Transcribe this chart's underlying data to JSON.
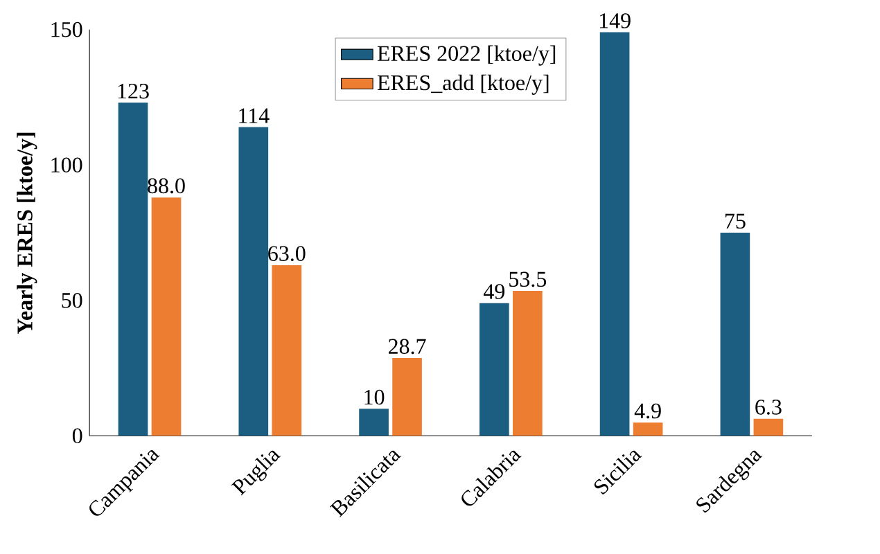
{
  "chart_data": {
    "type": "bar",
    "ylabel": "Yearly ERES [ktoe/y]",
    "categories": [
      "Campania",
      "Puglia",
      "Basilicata",
      "Calabria",
      "Sicilia",
      "Sardegna"
    ],
    "series": [
      {
        "name": "ERES 2022 [ktoe/y]",
        "color": "#1b5e82",
        "values": [
          123,
          114,
          10,
          49,
          149,
          75
        ],
        "value_labels": [
          "123",
          "114",
          "10",
          "49",
          "149",
          "75"
        ]
      },
      {
        "name": "ERES_add [ktoe/y]",
        "color": "#ed7d31",
        "values": [
          88.0,
          63.0,
          28.7,
          53.5,
          4.9,
          6.3
        ],
        "value_labels": [
          "88.0",
          "63.0",
          "28.7",
          "53.5",
          "4.9",
          "6.3"
        ]
      }
    ],
    "ylim": [
      0,
      150
    ],
    "yticks": [
      0,
      50,
      100,
      150
    ],
    "legend": "top"
  }
}
